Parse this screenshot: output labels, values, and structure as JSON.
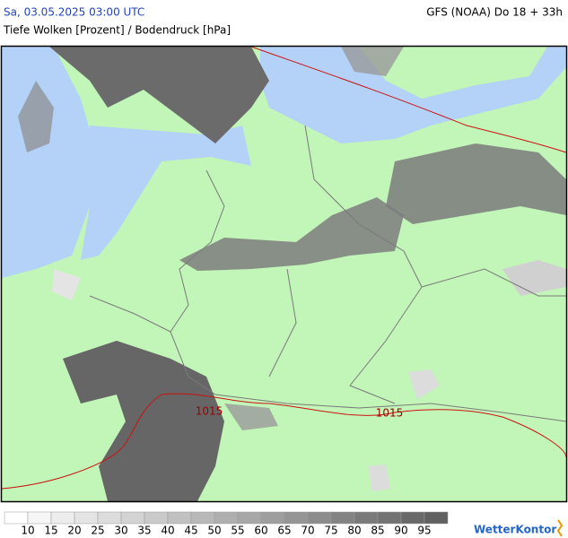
{
  "header": {
    "datetime": "Sa, 03.05.2025 03:00 UTC",
    "model": "GFS (NOAA) Do 18 + 33h",
    "subtitle": "Tiefe Wolken [Prozent] / Bodendruck [hPa]"
  },
  "map": {
    "isobar_labels": [
      "1015",
      "1015"
    ]
  },
  "legend": {
    "labels": [
      "10",
      "15",
      "20",
      "25",
      "30",
      "35",
      "40",
      "45",
      "50",
      "55",
      "60",
      "65",
      "70",
      "75",
      "80",
      "85",
      "90",
      "95"
    ]
  },
  "logo": "WetterKontor"
}
